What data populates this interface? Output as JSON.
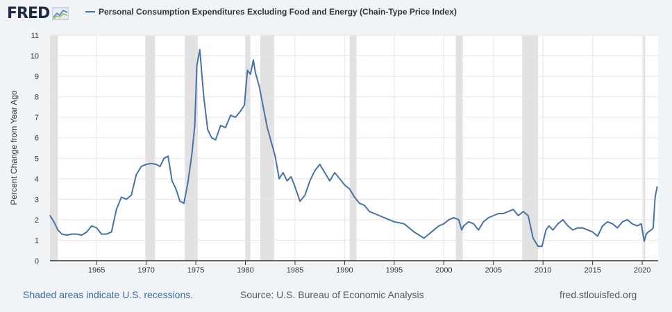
{
  "header": {
    "logo_text": "FRED",
    "logo_icon": "fred-trend-chart-icon"
  },
  "footer": {
    "recession_note": "Shaded areas indicate U.S. recessions.",
    "source": "Source: U.S. Bureau of Economic Analysis",
    "site": "fred.stlouisfed.org"
  },
  "colors": {
    "line": "#4572a7",
    "recession": "#e1e1e1",
    "grid": "#e6e6e6",
    "background": "#f1f4f7",
    "plot": "#ffffff"
  },
  "chart_data": {
    "type": "line",
    "title": "",
    "ylabel": "Percent Change from Year Ago",
    "xlabel": "",
    "xlim": [
      1960.3,
      2021.6
    ],
    "ylim": [
      0,
      11
    ],
    "grid": true,
    "x_ticks": [
      "1965",
      "1970",
      "1975",
      "1980",
      "1985",
      "1990",
      "1995",
      "2000",
      "2005",
      "2010",
      "2015",
      "2020"
    ],
    "y_ticks": [
      "0",
      "1",
      "2",
      "3",
      "4",
      "5",
      "6",
      "7",
      "8",
      "9",
      "10",
      "11"
    ],
    "recessions": [
      [
        1960.3,
        1961.1
      ],
      [
        1969.9,
        1970.9
      ],
      [
        1973.9,
        1975.2
      ],
      [
        1980.0,
        1980.5
      ],
      [
        1981.5,
        1982.9
      ],
      [
        1990.5,
        1991.2
      ],
      [
        2001.2,
        2001.9
      ],
      [
        2007.9,
        2009.5
      ],
      [
        2020.1,
        2020.3
      ]
    ],
    "series": [
      {
        "name": "Personal Consumption Expenditures Excluding Food and Energy (Chain-Type Price Index)",
        "x": [
          1960.3,
          1960.7,
          1961.1,
          1961.5,
          1962.0,
          1962.5,
          1963.0,
          1963.5,
          1964.0,
          1964.5,
          1965.0,
          1965.5,
          1966.0,
          1966.5,
          1967.0,
          1967.5,
          1968.0,
          1968.5,
          1969.0,
          1969.5,
          1970.0,
          1970.5,
          1971.0,
          1971.4,
          1971.8,
          1972.2,
          1972.6,
          1973.0,
          1973.4,
          1973.8,
          1974.2,
          1974.6,
          1974.9,
          1975.1,
          1975.4,
          1975.8,
          1976.2,
          1976.6,
          1977.0,
          1977.5,
          1978.0,
          1978.5,
          1979.0,
          1979.5,
          1979.9,
          1980.2,
          1980.5,
          1980.8,
          1981.0,
          1981.4,
          1981.8,
          1982.2,
          1982.6,
          1983.0,
          1983.4,
          1983.8,
          1984.2,
          1984.6,
          1985.0,
          1985.5,
          1986.0,
          1986.5,
          1987.0,
          1987.5,
          1988.0,
          1988.5,
          1989.0,
          1989.5,
          1990.0,
          1990.5,
          1991.0,
          1991.5,
          1992.0,
          1992.5,
          1993.0,
          1993.5,
          1994.0,
          1995.0,
          1996.0,
          1997.0,
          1998.0,
          1998.5,
          1999.0,
          1999.5,
          2000.0,
          2000.5,
          2001.0,
          2001.5,
          2001.8,
          2002.0,
          2002.5,
          2003.0,
          2003.5,
          2004.0,
          2004.5,
          2005.0,
          2005.5,
          2006.0,
          2006.5,
          2007.0,
          2007.5,
          2008.0,
          2008.5,
          2009.0,
          2009.5,
          2009.9,
          2010.3,
          2010.6,
          2011.0,
          2011.5,
          2012.0,
          2012.5,
          2013.0,
          2013.5,
          2014.0,
          2014.5,
          2015.0,
          2015.5,
          2016.0,
          2016.5,
          2017.0,
          2017.5,
          2018.0,
          2018.5,
          2019.0,
          2019.5,
          2019.9,
          2020.2,
          2020.4,
          2020.6,
          2020.9,
          2021.1,
          2021.3,
          2021.5
        ],
        "y": [
          2.2,
          1.9,
          1.5,
          1.3,
          1.25,
          1.3,
          1.3,
          1.25,
          1.4,
          1.7,
          1.6,
          1.3,
          1.3,
          1.4,
          2.5,
          3.1,
          3.0,
          3.2,
          4.2,
          4.6,
          4.7,
          4.75,
          4.7,
          4.6,
          5.0,
          5.1,
          3.9,
          3.5,
          2.9,
          2.8,
          3.8,
          5.2,
          6.6,
          9.5,
          10.3,
          8.0,
          6.4,
          6.0,
          5.9,
          6.6,
          6.5,
          7.1,
          7.0,
          7.3,
          7.6,
          9.3,
          9.1,
          9.8,
          9.2,
          8.5,
          7.5,
          6.5,
          5.8,
          5.1,
          4.0,
          4.3,
          3.9,
          4.1,
          3.6,
          2.9,
          3.2,
          3.9,
          4.4,
          4.7,
          4.3,
          3.9,
          4.3,
          4.0,
          3.7,
          3.5,
          3.1,
          2.8,
          2.7,
          2.4,
          2.3,
          2.2,
          2.1,
          1.9,
          1.8,
          1.4,
          1.1,
          1.3,
          1.5,
          1.7,
          1.8,
          2.0,
          2.1,
          2.0,
          1.5,
          1.7,
          1.9,
          1.8,
          1.5,
          1.9,
          2.1,
          2.2,
          2.3,
          2.3,
          2.4,
          2.5,
          2.2,
          2.4,
          2.2,
          1.1,
          0.7,
          0.7,
          1.5,
          1.7,
          1.5,
          1.8,
          2.0,
          1.7,
          1.5,
          1.6,
          1.6,
          1.5,
          1.4,
          1.2,
          1.7,
          1.9,
          1.8,
          1.6,
          1.9,
          2.0,
          1.8,
          1.7,
          1.8,
          0.95,
          1.3,
          1.4,
          1.5,
          1.6,
          3.1,
          3.6
        ]
      }
    ]
  }
}
